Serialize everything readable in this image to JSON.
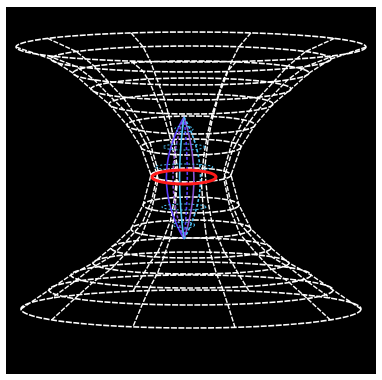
{
  "scene": {
    "subject": "wormhole-wireframe",
    "background_color": "#000000",
    "mesh_color": "#ffffff",
    "throat_ring_color": "#ff1a1a",
    "inner_object_colors": [
      "#5b3cff",
      "#8a55d6",
      "#4fc3f7"
    ]
  }
}
